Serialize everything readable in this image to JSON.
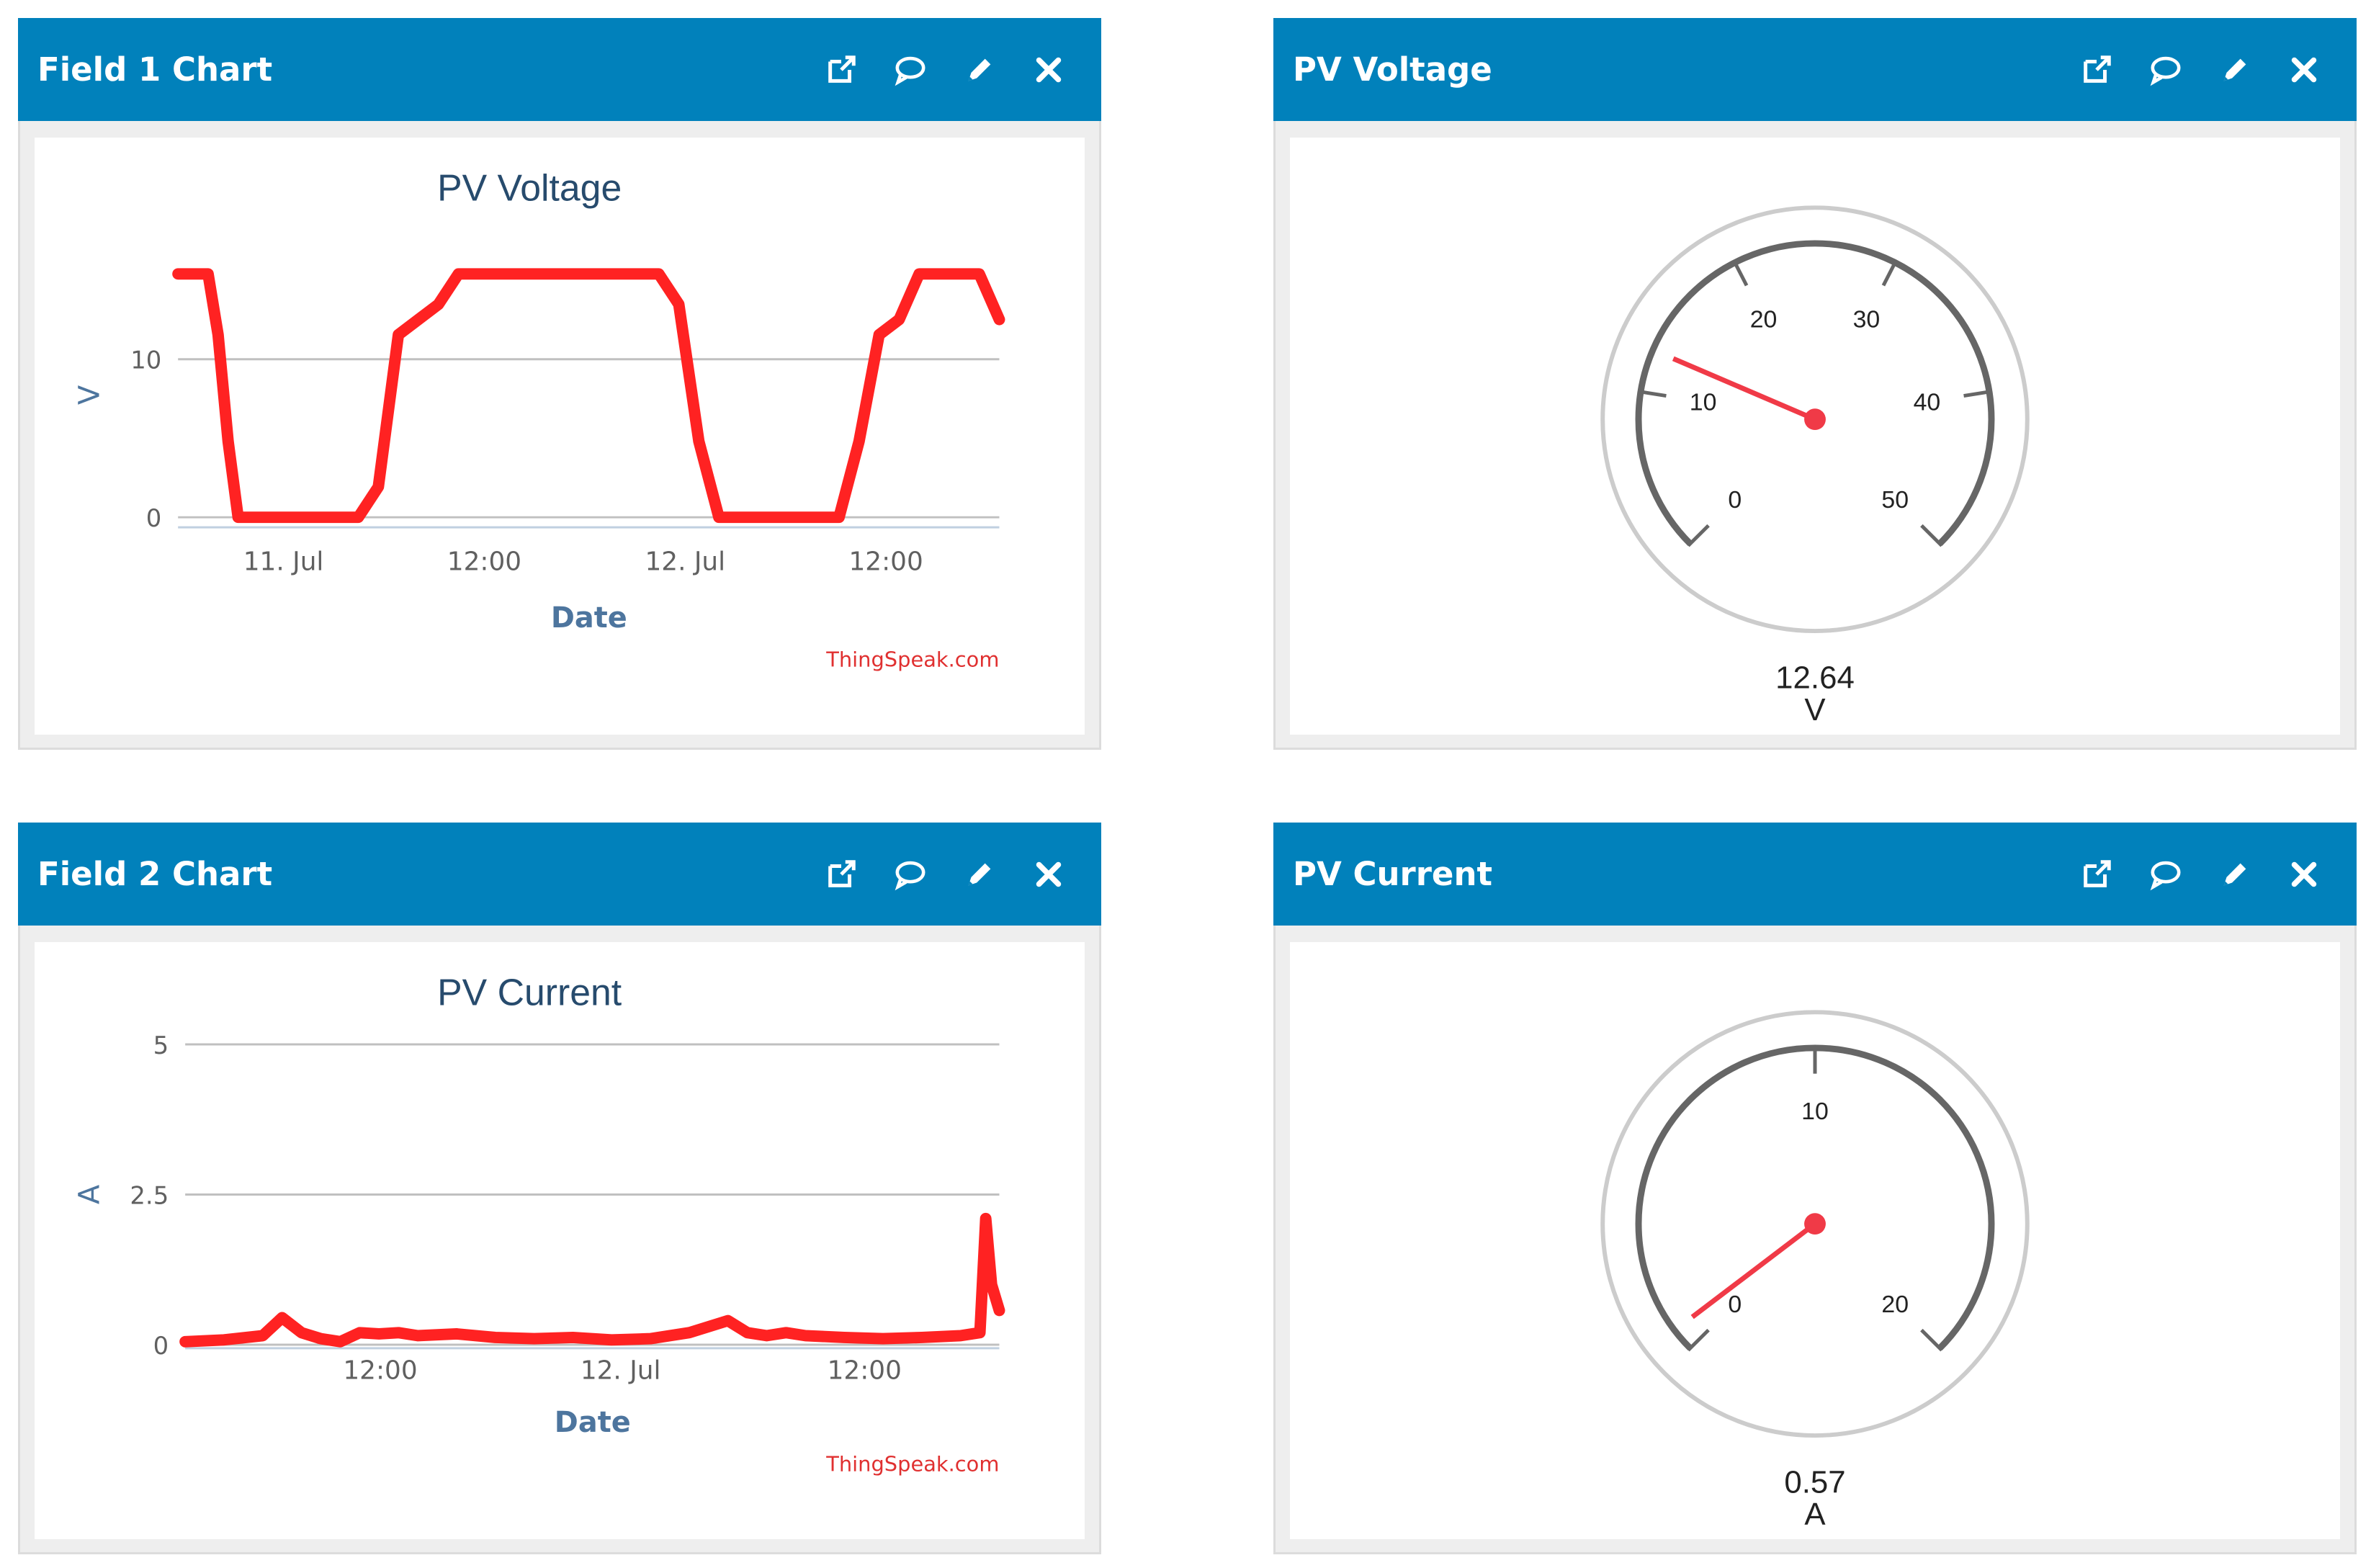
{
  "widgets": [
    {
      "title": "Field 1 Chart",
      "actions": {
        "open": "external-link-icon",
        "comment": "comment-icon",
        "edit": "pencil-icon",
        "close": "close-icon"
      },
      "chart_data": {
        "type": "line",
        "title": "PV Voltage",
        "xlabel": "Date",
        "ylabel": "V",
        "x_tick_labels": [
          "11. Jul",
          "12:00",
          "12. Jul",
          "12:00"
        ],
        "y_tick_labels": [
          "0",
          "10"
        ],
        "ylim": [
          0,
          16.5
        ],
        "credit": "ThingSpeak.com",
        "series": [
          {
            "color": "#ff2222",
            "x": [
              0,
              0.5,
              1,
              1.5,
              2,
              2.5,
              3,
              4,
              5,
              6,
              7,
              8,
              9,
              10,
              11,
              12,
              13,
              14,
              15,
              16,
              17,
              18,
              19,
              20,
              21,
              22,
              23,
              24,
              25,
              26,
              27,
              28,
              29,
              30,
              31,
              32,
              33,
              34,
              35,
              36,
              37,
              38,
              39,
              40,
              41
            ],
            "y": [
              16,
              16,
              16,
              16,
              12,
              5,
              0,
              0,
              0,
              0,
              0,
              0,
              0,
              2,
              12,
              13,
              14,
              16,
              16,
              16,
              16,
              16,
              16,
              16,
              16,
              16,
              16,
              16,
              14,
              5,
              0,
              0,
              0,
              0,
              0,
              0,
              0,
              5,
              12,
              13,
              16,
              16,
              16,
              16,
              13
            ]
          }
        ]
      }
    },
    {
      "title": "PV Voltage",
      "actions": {
        "open": "external-link-icon",
        "comment": "comment-icon",
        "edit": "pencil-icon",
        "close": "close-icon"
      },
      "gauge": {
        "min": 0,
        "max": 50,
        "ticks": [
          "0",
          "10",
          "20",
          "30",
          "40",
          "50"
        ],
        "value": 12.64,
        "value_label": "12.64",
        "unit": "V",
        "needle_color": "#f03a47"
      }
    },
    {
      "title": "Field 2 Chart",
      "actions": {
        "open": "external-link-icon",
        "comment": "comment-icon",
        "edit": "pencil-icon",
        "close": "close-icon"
      },
      "chart_data": {
        "type": "line",
        "title": "PV Current",
        "xlabel": "Date",
        "ylabel": "A",
        "x_tick_labels": [
          "12:00",
          "12. Jul",
          "12:00"
        ],
        "y_tick_labels": [
          "0",
          "2.5",
          "5"
        ],
        "ylim": [
          0,
          5
        ],
        "credit": "ThingSpeak.com",
        "series": [
          {
            "color": "#ff2222",
            "x": [
              0,
              2,
              4,
              5,
              6,
              7,
              8,
              9,
              10,
              11,
              12,
              14,
              16,
              18,
              20,
              22,
              24,
              26,
              28,
              29,
              30,
              31,
              32,
              34,
              36,
              38,
              40,
              41,
              41.3,
              41.6,
              42
            ],
            "y": [
              0.05,
              0.08,
              0.15,
              0.45,
              0.2,
              0.1,
              0.05,
              0.2,
              0.18,
              0.2,
              0.15,
              0.18,
              0.12,
              0.1,
              0.12,
              0.08,
              0.1,
              0.2,
              0.4,
              0.2,
              0.15,
              0.2,
              0.15,
              0.12,
              0.1,
              0.12,
              0.15,
              0.2,
              2.1,
              1.0,
              0.57
            ]
          }
        ]
      }
    },
    {
      "title": "PV Current",
      "actions": {
        "open": "external-link-icon",
        "comment": "comment-icon",
        "edit": "pencil-icon",
        "close": "close-icon"
      },
      "gauge": {
        "min": 0,
        "max": 20,
        "ticks": [
          "0",
          "10",
          "20"
        ],
        "value": 0.57,
        "value_label": "0.57",
        "unit": "A",
        "needle_color": "#f03a47"
      }
    }
  ]
}
